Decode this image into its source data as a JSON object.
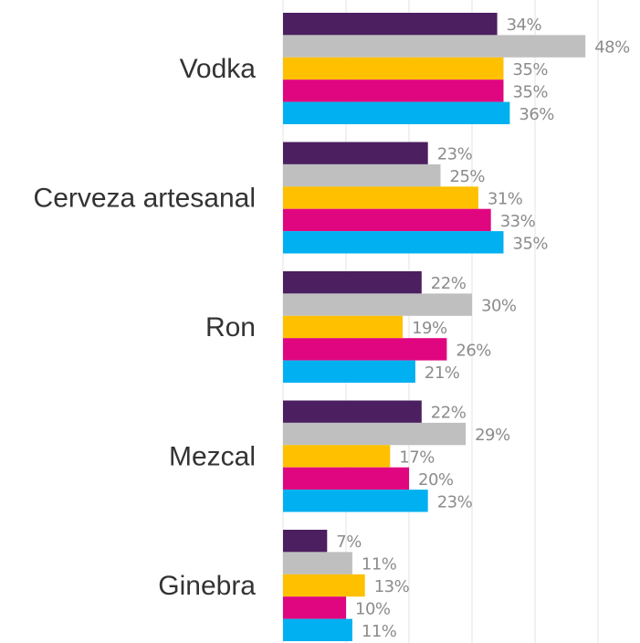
{
  "chart_data": {
    "type": "barh",
    "categories": [
      "Vodka",
      "Cerveza artesanal",
      "Ron",
      "Mezcal",
      "Ginebra"
    ],
    "series": [
      {
        "color": "#4b1f60",
        "values": [
          34,
          23,
          22,
          22,
          7
        ],
        "value_labels": [
          "34%",
          "23%",
          "22%",
          "22%",
          "7%"
        ]
      },
      {
        "color": "#bfbfbf",
        "values": [
          48,
          25,
          30,
          29,
          11
        ],
        "value_labels": [
          "48%",
          "25%",
          "30%",
          "29%",
          "11%"
        ]
      },
      {
        "color": "#ffc000",
        "values": [
          35,
          31,
          19,
          17,
          13
        ],
        "value_labels": [
          "35%",
          "31%",
          "19%",
          "17%",
          "13%"
        ]
      },
      {
        "color": "#e0067f",
        "values": [
          35,
          33,
          26,
          20,
          10
        ],
        "value_labels": [
          "35%",
          "33%",
          "26%",
          "20%",
          "10%"
        ]
      },
      {
        "color": "#00b0f0",
        "values": [
          36,
          35,
          21,
          23,
          11
        ],
        "value_labels": [
          "36%",
          "35%",
          "21%",
          "23%",
          "11%"
        ]
      }
    ],
    "xlim": [
      0,
      50
    ],
    "xticks": [
      0,
      10,
      20,
      30,
      40,
      50
    ],
    "grid": true
  }
}
